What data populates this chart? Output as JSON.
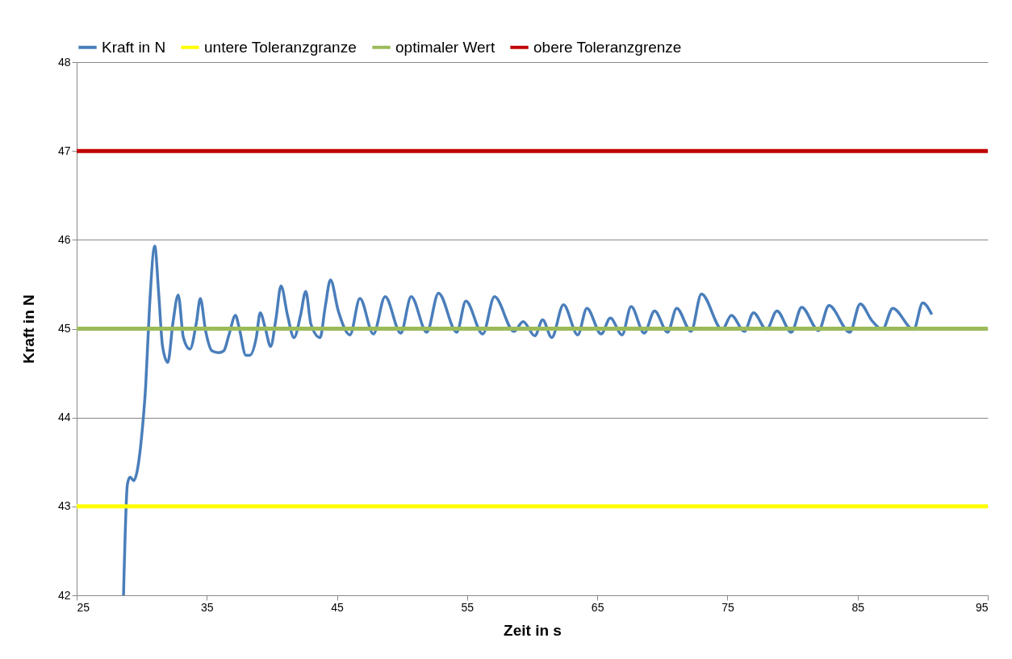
{
  "chart_data": {
    "type": "line",
    "xlabel": "Zeit in s",
    "ylabel": "Kraft in N",
    "xlim": [
      25,
      95
    ],
    "xticks": [
      25,
      35,
      45,
      55,
      65,
      75,
      85,
      95
    ],
    "ylim": [
      42,
      48
    ],
    "yticks": [
      42,
      43,
      44,
      45,
      46,
      47,
      48
    ],
    "grid": "y",
    "legend": "top",
    "marker": "none",
    "line_style": "solid",
    "series": [
      {
        "name": "Kraft in N",
        "color": "#4a7ebb",
        "x": [
          28.6,
          28.9,
          29.1,
          29.4,
          29.65,
          30.0,
          30.3,
          30.6,
          31.0,
          31.3,
          31.6,
          32.0,
          32.4,
          32.8,
          33.2,
          33.7,
          34.2,
          34.5,
          34.9,
          35.4,
          35.9,
          36.3,
          36.7,
          37.2,
          37.5,
          38.0,
          38.3,
          38.8,
          39.1,
          39.5,
          39.9,
          40.3,
          40.7,
          41.2,
          41.7,
          42.2,
          42.6,
          43.0,
          43.7,
          44.1,
          44.5,
          45.1,
          46.0,
          46.76,
          47.8,
          48.7,
          49.9,
          50.7,
          51.9,
          52.8,
          54.2,
          54.9,
          56.2,
          57.1,
          58.6,
          59.3,
          60.2,
          60.8,
          61.5,
          62.4,
          63.5,
          64.2,
          65.3,
          66.0,
          66.9,
          67.6,
          68.6,
          69.4,
          70.4,
          71.1,
          72.2,
          73.0,
          74.6,
          75.3,
          76.3,
          77.0,
          78.0,
          78.8,
          79.9,
          80.7,
          82.0,
          82.8,
          84.4,
          85.2,
          86.1,
          86.9,
          87.7,
          89.3,
          90.0,
          90.7
        ],
        "values": [
          42.0,
          43.25,
          43.33,
          43.29,
          43.4,
          43.8,
          44.35,
          45.25,
          45.93,
          45.4,
          44.8,
          44.62,
          45.07,
          45.38,
          44.9,
          44.77,
          45.07,
          45.34,
          44.98,
          44.75,
          44.73,
          44.75,
          44.93,
          45.15,
          45.0,
          44.7,
          44.7,
          44.9,
          45.18,
          45.0,
          44.8,
          45.1,
          45.48,
          45.15,
          44.9,
          45.15,
          45.42,
          45.05,
          44.9,
          45.25,
          45.55,
          45.2,
          44.93,
          45.34,
          44.94,
          45.36,
          44.95,
          45.36,
          44.96,
          45.4,
          44.96,
          45.31,
          44.94,
          45.36,
          44.97,
          45.08,
          44.92,
          45.1,
          44.9,
          45.27,
          44.93,
          45.23,
          44.94,
          45.12,
          44.93,
          45.25,
          44.95,
          45.2,
          44.96,
          45.23,
          44.97,
          45.39,
          44.99,
          45.15,
          44.97,
          45.18,
          44.99,
          45.2,
          44.96,
          45.24,
          44.98,
          45.26,
          44.96,
          45.28,
          45.09,
          44.99,
          45.23,
          44.99,
          45.29,
          45.16
        ]
      },
      {
        "name": "untere Toleranzgranze",
        "color": "#ffff00",
        "x": [
          25,
          95
        ],
        "values": [
          43,
          43
        ]
      },
      {
        "name": "optimaler Wert",
        "color": "#9bbb59",
        "x": [
          25,
          95
        ],
        "values": [
          45,
          45
        ]
      },
      {
        "name": "obere Toleranzgrenze",
        "color": "#c00000",
        "x": [
          25,
          95
        ],
        "values": [
          47,
          47
        ]
      }
    ]
  }
}
